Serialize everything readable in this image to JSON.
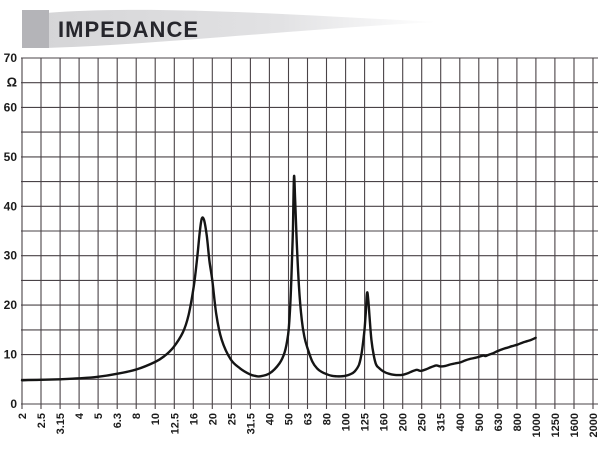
{
  "header": {
    "title": "IMPEDANCE"
  },
  "colors": {
    "grid": "#4a4347",
    "curve": "#151515",
    "title": "#26262c",
    "square": "#b4b4b8",
    "swoosh": "#d8d8da",
    "label": "#1b1b1b"
  },
  "chart_data": {
    "type": "line",
    "title": "IMPEDANCE",
    "x_scale": "log",
    "y_unit": "Ω",
    "xlim": [
      2,
      2000
    ],
    "ylim": [
      0,
      70
    ],
    "y_gridline_step": 5,
    "y_label_step": 10,
    "grid": true,
    "legend": false,
    "x_ticks": [
      "2",
      "2.5",
      "3.15",
      "4",
      "5",
      "6.3",
      "8",
      "10",
      "12.5",
      "16",
      "20",
      "25",
      "31.5",
      "40",
      "50",
      "63",
      "80",
      "100",
      "125",
      "160",
      "200",
      "250",
      "315",
      "400",
      "500",
      "630",
      "800",
      "1000",
      "1250",
      "1600",
      "2000"
    ],
    "y_tick_labels": [
      "0",
      "10",
      "20",
      "30",
      "40",
      "50",
      "60",
      "70"
    ],
    "series": [
      {
        "name": "impedance",
        "points": [
          [
            2,
            4.8
          ],
          [
            2.5,
            4.9
          ],
          [
            3.15,
            5.0
          ],
          [
            4,
            5.2
          ],
          [
            5,
            5.5
          ],
          [
            6.3,
            6.1
          ],
          [
            8,
            7.0
          ],
          [
            10,
            8.5
          ],
          [
            11.2,
            9.7
          ],
          [
            12.5,
            11.5
          ],
          [
            14,
            14.5
          ],
          [
            15,
            18
          ],
          [
            16,
            24
          ],
          [
            16.7,
            30
          ],
          [
            17.2,
            35
          ],
          [
            17.6,
            37.5
          ],
          [
            18.1,
            37.2
          ],
          [
            18.7,
            34
          ],
          [
            19.3,
            29
          ],
          [
            20,
            25
          ],
          [
            21,
            18
          ],
          [
            22.4,
            13
          ],
          [
            25,
            9
          ],
          [
            28,
            7.2
          ],
          [
            31.5,
            6.0
          ],
          [
            33.5,
            5.7
          ],
          [
            35.5,
            5.6
          ],
          [
            40,
            6.2
          ],
          [
            45,
            8.2
          ],
          [
            48,
            10.5
          ],
          [
            50,
            14
          ],
          [
            51,
            18
          ],
          [
            52,
            25
          ],
          [
            53,
            35
          ],
          [
            53.7,
            46
          ],
          [
            54.5,
            41
          ],
          [
            55.5,
            33
          ],
          [
            57,
            24
          ],
          [
            59,
            17
          ],
          [
            61,
            13.5
          ],
          [
            63,
            11.5
          ],
          [
            67,
            8.6
          ],
          [
            71,
            7.2
          ],
          [
            75,
            6.5
          ],
          [
            80,
            6.0
          ],
          [
            85,
            5.7
          ],
          [
            90,
            5.6
          ],
          [
            95,
            5.6
          ],
          [
            100,
            5.7
          ],
          [
            106,
            6.0
          ],
          [
            112,
            6.6
          ],
          [
            118,
            8.0
          ],
          [
            122,
            10.5
          ],
          [
            126,
            15
          ],
          [
            128,
            18.5
          ],
          [
            130,
            22.5
          ],
          [
            132,
            21
          ],
          [
            134,
            17.5
          ],
          [
            137,
            13
          ],
          [
            141,
            9.8
          ],
          [
            145,
            8.0
          ],
          [
            150,
            7.3
          ],
          [
            160,
            6.5
          ],
          [
            170,
            6.1
          ],
          [
            180,
            5.9
          ],
          [
            190,
            5.85
          ],
          [
            200,
            5.9
          ],
          [
            212,
            6.2
          ],
          [
            224,
            6.6
          ],
          [
            236,
            6.9
          ],
          [
            243,
            6.8
          ],
          [
            250,
            6.7
          ],
          [
            265,
            7.0
          ],
          [
            280,
            7.4
          ],
          [
            300,
            7.8
          ],
          [
            315,
            7.6
          ],
          [
            335,
            7.7
          ],
          [
            355,
            8.0
          ],
          [
            375,
            8.2
          ],
          [
            400,
            8.4
          ],
          [
            425,
            8.8
          ],
          [
            450,
            9.1
          ],
          [
            475,
            9.3
          ],
          [
            500,
            9.5
          ],
          [
            530,
            9.8
          ],
          [
            545,
            9.7
          ],
          [
            560,
            9.9
          ],
          [
            600,
            10.3
          ],
          [
            630,
            10.7
          ],
          [
            670,
            11.1
          ],
          [
            710,
            11.4
          ],
          [
            750,
            11.7
          ],
          [
            800,
            12.0
          ],
          [
            850,
            12.4
          ],
          [
            900,
            12.7
          ],
          [
            950,
            13.0
          ],
          [
            1000,
            13.4
          ]
        ]
      }
    ]
  }
}
